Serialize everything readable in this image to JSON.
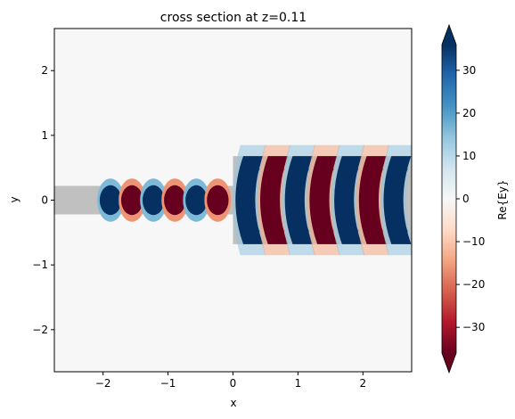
{
  "chart_data": {
    "type": "heatmap",
    "title": "cross section at z=0.11",
    "xlabel": "x",
    "ylabel": "y",
    "xlim": [
      -2.75,
      2.75
    ],
    "ylim": [
      -2.65,
      2.65
    ],
    "x_ticks": [
      -2,
      -1,
      0,
      1,
      2
    ],
    "y_ticks": [
      -2,
      -1,
      0,
      1,
      2
    ],
    "colorbar": {
      "label": "Re{Ey}",
      "range": [
        -36,
        36
      ],
      "ticks": [
        30,
        20,
        10,
        0,
        -10,
        -20,
        -30
      ],
      "colormap": "RdBu",
      "extend": "both"
    },
    "structures": [
      {
        "x": [
          -2.75,
          0.0
        ],
        "y": [
          -0.22,
          0.22
        ],
        "fill": "#c0c0c0"
      },
      {
        "x": [
          0.0,
          2.75
        ],
        "y": [
          -0.68,
          0.68
        ],
        "fill": "#c0c0c0"
      }
    ],
    "field": {
      "input_waveguide": {
        "x_range": [
          -2.05,
          0.0
        ],
        "half_width": 0.2,
        "period": 0.66,
        "amplitude": 36
      },
      "taper_region": {
        "x_range": [
          0.0,
          2.75
        ],
        "half_width": 0.68,
        "period": 0.76,
        "amplitude": 36
      }
    }
  }
}
